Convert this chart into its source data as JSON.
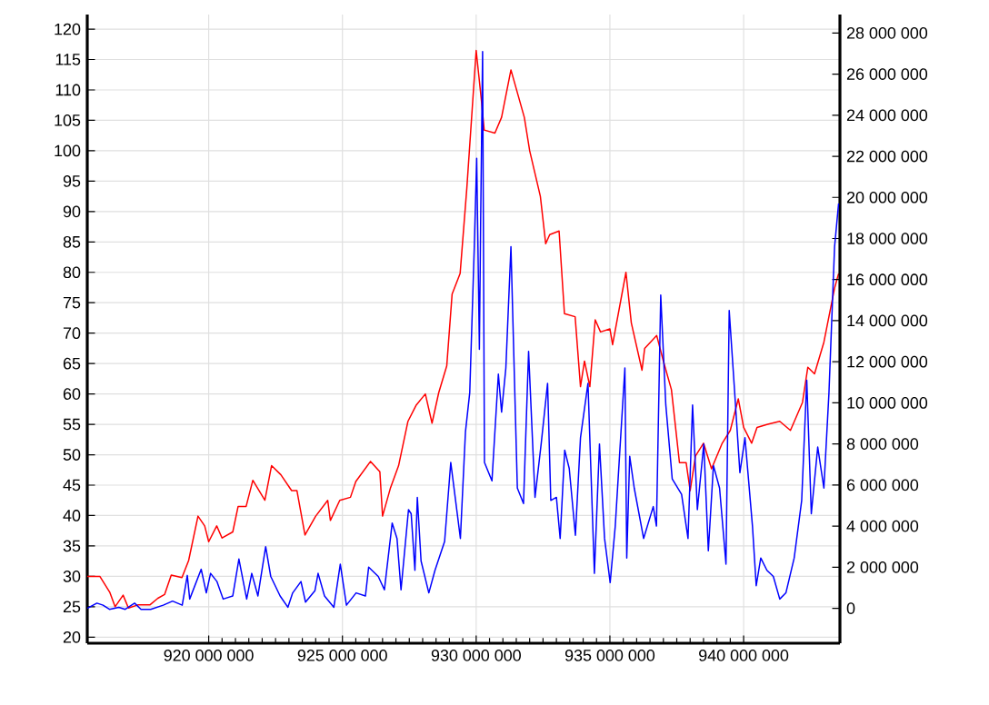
{
  "chart_data": {
    "type": "line",
    "xlim": [
      915460000,
      943600000
    ],
    "ylim": [
      19,
      122.4
    ],
    "y2lim": [
      -1700000,
      28900000
    ],
    "xticks": [
      {
        "value": 920000000,
        "label": "920 000 000"
      },
      {
        "value": 925000000,
        "label": "925 000 000"
      },
      {
        "value": 930000000,
        "label": "930 000 000"
      },
      {
        "value": 935000000,
        "label": "935 000 000"
      },
      {
        "value": 940000000,
        "label": "940 000 000"
      }
    ],
    "yticks": [
      20,
      25,
      30,
      35,
      40,
      45,
      50,
      55,
      60,
      65,
      70,
      75,
      80,
      85,
      90,
      95,
      100,
      105,
      110,
      115,
      120
    ],
    "y2ticks": [
      0,
      {
        "value": 2000000,
        "label": "2 000 000"
      },
      {
        "value": 4000000,
        "label": "4 000 000"
      },
      {
        "value": 6000000,
        "label": "6 000 000"
      },
      {
        "value": 8000000,
        "label": "8 000 000"
      },
      {
        "value": 10000000,
        "label": "10 000 000"
      },
      {
        "value": 12000000,
        "label": "12 000 000"
      },
      {
        "value": 14000000,
        "label": "14 000 000"
      },
      {
        "value": 16000000,
        "label": "16 000 000"
      },
      {
        "value": 18000000,
        "label": "18 000 000"
      },
      {
        "value": 20000000,
        "label": "20 000 000"
      },
      {
        "value": 22000000,
        "label": "22 000 000"
      },
      {
        "value": 24000000,
        "label": "24 000 000"
      },
      {
        "value": 26000000,
        "label": "26 000 000"
      },
      {
        "value": 28000000,
        "label": "28 000 000"
      }
    ],
    "grid": true,
    "series": [
      {
        "color": "#ff0000",
        "axis": "y",
        "x": [
          915460000,
          915930000,
          916300000,
          916500000,
          916800000,
          917000000,
          917350000,
          917800000,
          918100000,
          918350000,
          918600000,
          919000000,
          919250000,
          919600000,
          919850000,
          920000000,
          920300000,
          920500000,
          920900000,
          921100000,
          921400000,
          921650000,
          922100000,
          922350000,
          922700000,
          923100000,
          923300000,
          923600000,
          924000000,
          924450000,
          924550000,
          924900000,
          925300000,
          925500000,
          926050000,
          926400000,
          926500000,
          926800000,
          927100000,
          927450000,
          927750000,
          928100000,
          928350000,
          928600000,
          928900000,
          929100000,
          929400000,
          929650000,
          930000000,
          930200000,
          930300000,
          930700000,
          930950000,
          931300000,
          931800000,
          932000000,
          932400000,
          932600000,
          932750000,
          933100000,
          933300000,
          933700000,
          933900000,
          934050000,
          934250000,
          934450000,
          934650000,
          935000000,
          935100000,
          935600000,
          935800000,
          936200000,
          936300000,
          936750000,
          937000000,
          937300000,
          937600000,
          937850000,
          938000000,
          938200000,
          938500000,
          938800000,
          939200000,
          939500000,
          939800000,
          940000000,
          940300000,
          940500000,
          940900000,
          941350000,
          941750000,
          942200000,
          942400000,
          942650000,
          943000000,
          943400000,
          943550000
        ],
        "values": [
          30,
          30,
          27.4,
          25,
          26.9,
          24.8,
          25.3,
          25.3,
          26.4,
          27,
          30.2,
          29.8,
          32.6,
          39.9,
          38.3,
          35.7,
          38.3,
          36.3,
          37.3,
          41.5,
          41.5,
          45.8,
          42.5,
          48.2,
          46.7,
          44.1,
          44.1,
          36.8,
          39.9,
          42.5,
          39.2,
          42.5,
          43,
          45.6,
          48.9,
          47.2,
          39.9,
          44.6,
          48.2,
          55.5,
          58.1,
          60,
          55.2,
          60.2,
          64.6,
          76.4,
          79.8,
          93.8,
          116.5,
          108.1,
          103.4,
          102.9,
          105.5,
          113.3,
          105.5,
          100,
          92.5,
          84.7,
          86.2,
          86.8,
          73.2,
          72.7,
          61.2,
          65.4,
          61.2,
          72.2,
          70.2,
          70.7,
          68.1,
          80,
          71.7,
          63.9,
          67.5,
          69.6,
          65.4,
          60.7,
          48.7,
          48.7,
          44.1,
          49.8,
          51.9,
          47.7,
          51.9,
          54,
          59.2,
          54.5,
          51.9,
          54.5,
          55,
          55.5,
          54,
          58.6,
          64.4,
          63.3,
          68.5,
          77.4,
          79.8
        ]
      },
      {
        "color": "#0000ff",
        "axis": "y2",
        "x": [
          915460000,
          915820000,
          916050000,
          916290000,
          916640000,
          916880000,
          917230000,
          917470000,
          917830000,
          918300000,
          918650000,
          919010000,
          919200000,
          919290000,
          919720000,
          919910000,
          920070000,
          920310000,
          920540000,
          920900000,
          921130000,
          921420000,
          921610000,
          921840000,
          922130000,
          922320000,
          922670000,
          922960000,
          923140000,
          923450000,
          923620000,
          923970000,
          924090000,
          924330000,
          924680000,
          924920000,
          925150000,
          925510000,
          925860000,
          925980000,
          926340000,
          926570000,
          926860000,
          927040000,
          927190000,
          927470000,
          927570000,
          927710000,
          927800000,
          927940000,
          928230000,
          928460000,
          928820000,
          929050000,
          929410000,
          929600000,
          929760000,
          929930000,
          930020000,
          930120000,
          930170000,
          930240000,
          930310000,
          930590000,
          930830000,
          930950000,
          931110000,
          931300000,
          931540000,
          931770000,
          931960000,
          932200000,
          932430000,
          932670000,
          932790000,
          933000000,
          933140000,
          933310000,
          933480000,
          933710000,
          933900000,
          934180000,
          934420000,
          934610000,
          934800000,
          935010000,
          935200000,
          935560000,
          935630000,
          935740000,
          935910000,
          936260000,
          936620000,
          936740000,
          936900000,
          937090000,
          937330000,
          937680000,
          937920000,
          938090000,
          938270000,
          938510000,
          938680000,
          938870000,
          939100000,
          939340000,
          939460000,
          939650000,
          939860000,
          940050000,
          940330000,
          940470000,
          940640000,
          940870000,
          941110000,
          941350000,
          941580000,
          941890000,
          942170000,
          942360000,
          942530000,
          942770000,
          943000000,
          943190000,
          943400000,
          943550000
        ],
        "values": [
          0,
          250000,
          150000,
          -50000,
          50000,
          -50000,
          250000,
          -50000,
          -50000,
          150000,
          350000,
          150000,
          1600000,
          450000,
          1900000,
          750000,
          1700000,
          1300000,
          450000,
          600000,
          2400000,
          450000,
          1700000,
          600000,
          3000000,
          1550000,
          600000,
          50000,
          750000,
          1300000,
          300000,
          850000,
          1700000,
          600000,
          50000,
          2150000,
          150000,
          750000,
          600000,
          2000000,
          1550000,
          900000,
          4150000,
          3400000,
          900000,
          4800000,
          4600000,
          1850000,
          5400000,
          2300000,
          750000,
          1850000,
          3250000,
          7100000,
          3400000,
          8600000,
          10500000,
          17600000,
          21900000,
          12600000,
          19100000,
          27100000,
          7100000,
          6200000,
          11400000,
          9550000,
          11700000,
          17600000,
          5850000,
          5100000,
          12500000,
          5400000,
          8000000,
          10950000,
          5250000,
          5400000,
          3400000,
          7700000,
          6800000,
          3550000,
          8300000,
          10950000,
          1700000,
          8000000,
          3400000,
          1250000,
          4000000,
          11700000,
          2450000,
          7400000,
          5850000,
          3400000,
          4950000,
          4000000,
          15250000,
          9900000,
          6300000,
          5550000,
          3400000,
          9900000,
          4800000,
          8000000,
          2800000,
          6950000,
          5850000,
          2150000,
          14500000,
          10800000,
          6600000,
          8300000,
          4000000,
          1100000,
          2450000,
          1850000,
          1550000,
          450000,
          750000,
          2450000,
          5250000,
          11100000,
          4600000,
          7850000,
          5850000,
          10500000,
          17600000,
          19700000
        ]
      }
    ]
  }
}
